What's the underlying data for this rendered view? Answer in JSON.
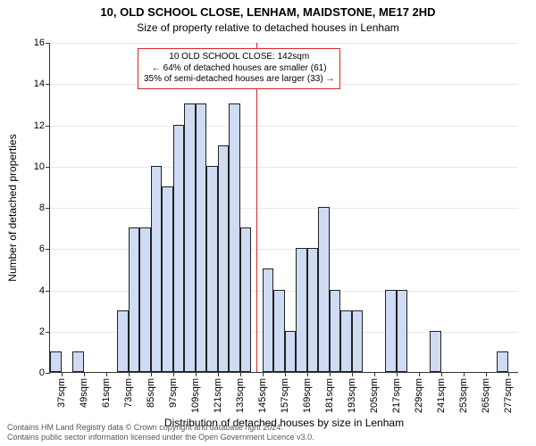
{
  "chart": {
    "type": "histogram",
    "title_line1": "10, OLD SCHOOL CLOSE, LENHAM, MAIDSTONE, ME17 2HD",
    "title_line2": "Size of property relative to detached houses in Lenham",
    "title_fontsize": 13,
    "subtitle_fontsize": 12,
    "ylabel": "Number of detached properties",
    "xlabel": "Distribution of detached houses by size in Lenham",
    "axis_label_fontsize": 12,
    "tick_fontsize": 11,
    "background_color": "#ffffff",
    "grid_color": "#e8e8e8",
    "axis_color": "#333333",
    "bar_fill": "#cedbf2",
    "bar_border": "#222222",
    "bar_border_width": 0.5,
    "ref_line_color": "#d62728",
    "ref_value": 142,
    "annotation": {
      "lines": [
        "10 OLD SCHOOL CLOSE: 142sqm",
        "← 64% of detached houses are smaller (61)",
        "35% of semi-detached houses are larger (33) →"
      ],
      "border_color": "#d62728",
      "border_width": 1,
      "bg": "#ffffff",
      "fontsize": 10
    },
    "ylim": [
      0,
      16
    ],
    "ytick_step": 2,
    "x_start": 31,
    "x_end": 283,
    "bin_width": 6,
    "xtick_start": 37,
    "xtick_step": 12,
    "xtick_suffix": "sqm",
    "values": [
      1,
      0,
      1,
      0,
      0,
      0,
      3,
      7,
      7,
      10,
      9,
      12,
      13,
      13,
      10,
      11,
      13,
      7,
      0,
      5,
      4,
      2,
      6,
      6,
      8,
      4,
      3,
      3,
      0,
      0,
      4,
      4,
      0,
      0,
      2,
      0,
      0,
      0,
      0,
      0,
      1,
      0
    ],
    "footer": {
      "line1": "Contains HM Land Registry data © Crown copyright and database right 2024.",
      "line2": "Contains public sector information licensed under the Open Government Licence v3.0.",
      "fontsize": 9,
      "color": "#555555"
    }
  }
}
